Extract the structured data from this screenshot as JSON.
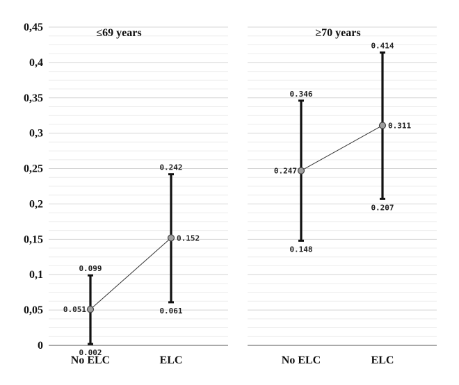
{
  "chart_data": {
    "type": "errorbar",
    "ylim": [
      0,
      0.45
    ],
    "yticks": [
      "0",
      "0,05",
      "0,1",
      "0,15",
      "0,2",
      "0,25",
      "0,3",
      "0,35",
      "0,4",
      "0,45"
    ],
    "categories": [
      "No ELC",
      "ELC"
    ],
    "panels": [
      {
        "title": "≤69 years",
        "points": [
          {
            "category": "No ELC",
            "value": 0.051,
            "lower": 0.002,
            "upper": 0.099,
            "label_value": "0.051",
            "label_lower": "0.002",
            "label_upper": "0.099"
          },
          {
            "category": "ELC",
            "value": 0.152,
            "lower": 0.061,
            "upper": 0.242,
            "label_value": "0.152",
            "label_lower": "0.061",
            "label_upper": "0.242"
          }
        ]
      },
      {
        "title": "≥70 years",
        "points": [
          {
            "category": "No ELC",
            "value": 0.247,
            "lower": 0.148,
            "upper": 0.346,
            "label_value": "0.247",
            "label_lower": "0.148",
            "label_upper": "0.346"
          },
          {
            "category": "ELC",
            "value": 0.311,
            "lower": 0.207,
            "upper": 0.414,
            "label_value": "0.311",
            "label_lower": "0.207",
            "label_upper": "0.414"
          }
        ]
      }
    ],
    "grid": true,
    "colors": {
      "marker": "#9e9e9e",
      "bar": "#111111",
      "line": "#333333",
      "grid": "#d4d4d4"
    }
  }
}
